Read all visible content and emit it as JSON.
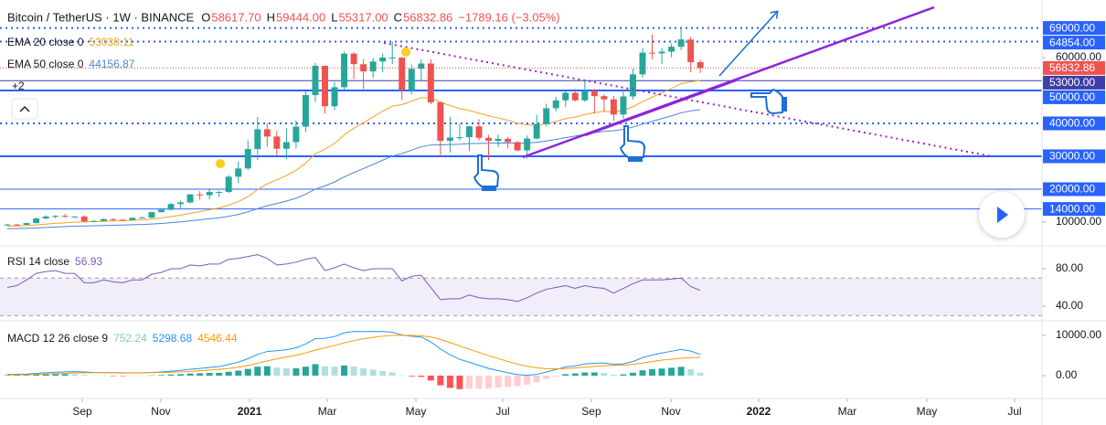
{
  "header": {
    "symbol": "Bitcoin / TetherUS · 1W · BINANCE",
    "ohlc": [
      {
        "key": "O",
        "value": "58617.70"
      },
      {
        "key": "H",
        "value": "59444.00"
      },
      {
        "key": "L",
        "value": "55317.00"
      },
      {
        "key": "C",
        "value": "56832.86"
      }
    ],
    "change": "−1789.16 (−3.05%)",
    "indicators_hidden": "+2"
  },
  "chart_data": [
    {
      "type": "candlestick",
      "categories": [
        null,
        null,
        null,
        null,
        null,
        null,
        null,
        null,
        null,
        null,
        null,
        null,
        null,
        null,
        null,
        null,
        null,
        null,
        null,
        null,
        null,
        null,
        null,
        null,
        null,
        null,
        null,
        null,
        null,
        null,
        null,
        null,
        null,
        null,
        null,
        null,
        null,
        null,
        null,
        null,
        null,
        null,
        null,
        null,
        null,
        null,
        null,
        null,
        null,
        null,
        null,
        null,
        null,
        null,
        null,
        null,
        null,
        null,
        null,
        null,
        null,
        null,
        null,
        null,
        null,
        null,
        null,
        null,
        null,
        null,
        null,
        null,
        null
      ],
      "open": [
        9070,
        9250,
        9170,
        9700,
        11100,
        11700,
        11900,
        11650,
        11700,
        10250,
        10330,
        10920,
        10700,
        10600,
        11300,
        11370,
        13030,
        13780,
        15480,
        15970,
        18400,
        18180,
        19150,
        19150,
        23800,
        26300,
        32200,
        38200,
        36000,
        32300,
        34300,
        39000,
        48600,
        57500,
        45200,
        51000,
        61200,
        58000,
        55800,
        58800,
        60000,
        60000,
        50100,
        56600,
        58200,
        46400,
        34700,
        35700,
        35800,
        39100,
        35600,
        34700,
        35300,
        34300,
        31800,
        35400,
        39800,
        44600,
        47000,
        49300,
        47000,
        49900,
        48300,
        47300,
        42700,
        48200,
        54900,
        61500,
        61300,
        61800,
        63300,
        65500,
        58617.7
      ],
      "high": [
        9450,
        9400,
        9900,
        11400,
        12100,
        12100,
        12500,
        11800,
        12100,
        10600,
        11100,
        11200,
        10950,
        11500,
        11700,
        13200,
        14000,
        15800,
        16500,
        18600,
        19400,
        19900,
        19500,
        24300,
        28400,
        34800,
        41900,
        40100,
        37800,
        38500,
        40900,
        49700,
        58400,
        57500,
        52600,
        61800,
        61700,
        59500,
        59900,
        61200,
        64854,
        60100,
        57900,
        59500,
        59500,
        46600,
        42000,
        39900,
        39300,
        41300,
        36500,
        36600,
        35900,
        34600,
        36300,
        42600,
        46000,
        48100,
        49900,
        50500,
        52900,
        50500,
        48800,
        48400,
        50400,
        56600,
        62900,
        67000,
        62900,
        64300,
        69000,
        66300,
        59444
      ],
      "low": [
        8950,
        9000,
        9100,
        9600,
        10800,
        11100,
        11300,
        11200,
        9900,
        9900,
        10200,
        10400,
        10400,
        10500,
        11200,
        11200,
        12900,
        13500,
        14300,
        15700,
        16800,
        16900,
        17600,
        18800,
        21800,
        25800,
        28800,
        32800,
        30200,
        29200,
        32400,
        37400,
        46500,
        43000,
        44000,
        50300,
        53500,
        50400,
        53700,
        55500,
        58000,
        47100,
        48800,
        53100,
        45800,
        30000,
        31100,
        34800,
        31600,
        34800,
        28800,
        32800,
        32400,
        31500,
        29300,
        35100,
        39100,
        43700,
        45000,
        46600,
        46600,
        43000,
        43600,
        40700,
        41500,
        47300,
        53900,
        59500,
        58000,
        60100,
        62300,
        55600,
        55317
      ],
      "close": [
        9250,
        9170,
        9700,
        11100,
        11700,
        11900,
        11650,
        11700,
        10250,
        10330,
        10920,
        10700,
        10600,
        11300,
        11370,
        13030,
        13780,
        15480,
        15970,
        18400,
        18180,
        19150,
        19150,
        23800,
        26300,
        32200,
        38200,
        36000,
        32300,
        34300,
        39000,
        48600,
        57500,
        45200,
        51000,
        61200,
        58000,
        55800,
        58800,
        60000,
        60000,
        50100,
        56600,
        58200,
        46400,
        34700,
        35700,
        35800,
        39100,
        35600,
        34700,
        35300,
        34300,
        31800,
        35400,
        39800,
        44600,
        47000,
        49300,
        47000,
        49900,
        48300,
        47300,
        42700,
        48200,
        54900,
        61500,
        61300,
        61800,
        63300,
        65500,
        58600,
        56832.86
      ],
      "up_color": "#26a69a",
      "down_color": "#ef5350",
      "lines": [
        {
          "name": "EMA 20 close 0",
          "color": "#f7a21b",
          "values": [
            8800,
            8840,
            8920,
            9130,
            9370,
            9610,
            9810,
            9990,
            10060,
            10140,
            10260,
            10350,
            10420,
            10550,
            10680,
            10950,
            11270,
            11670,
            12080,
            12680,
            13200,
            13760,
            14270,
            15180,
            16230,
            17750,
            19890,
            21620,
            22830,
            24160,
            25760,
            27930,
            30750,
            32120,
            33920,
            36520,
            38560,
            40200,
            41970,
            43690,
            45240,
            45700,
            46740,
            47830,
            47700,
            46460,
            45440,
            44520,
            43910,
            43120,
            42320,
            41650,
            40950,
            40080,
            39540,
            39420,
            39900,
            40580,
            41410,
            41950,
            42720,
            43250,
            43640,
            43550,
            43990,
            45030,
            46600,
            47990,
            49300,
            50640,
            52060,
            52680,
            53038.11
          ]
        },
        {
          "name": "EMA 50 close 0",
          "color": "#4a86d8",
          "values": [
            8000,
            8050,
            8110,
            8230,
            8370,
            8510,
            8640,
            8760,
            8830,
            8890,
            8970,
            9040,
            9100,
            9190,
            9270,
            9420,
            9590,
            9820,
            10060,
            10380,
            10680,
            11000,
            11300,
            11770,
            12330,
            13120,
            14110,
            14970,
            15650,
            16380,
            17260,
            18490,
            20020,
            21010,
            22190,
            23720,
            25060,
            26260,
            27540,
            28820,
            30050,
            30840,
            31860,
            32900,
            33420,
            33470,
            33560,
            33650,
            33870,
            33940,
            33970,
            34030,
            34040,
            33950,
            34010,
            34230,
            34640,
            35130,
            35700,
            36150,
            36700,
            37170,
            37570,
            37780,
            38200,
            38870,
            39770,
            40620,
            41450,
            42300,
            43200,
            43800,
            44156.87
          ]
        }
      ],
      "levels": [
        {
          "value": 69000,
          "label": "69000.00",
          "color": "#2962ff",
          "dash": true,
          "width": 2
        },
        {
          "value": 64854,
          "label": "64854.00",
          "color": "#2962ff",
          "dash": true,
          "width": 2
        },
        {
          "value": 53000,
          "label": "53000.00",
          "color": "#3f3fa8",
          "dash": false,
          "width": 1
        },
        {
          "value": 50000,
          "label": "50000.00",
          "color": "#2962ff",
          "dash": false,
          "width": 2
        },
        {
          "value": 40000,
          "label": "40000.00",
          "color": "#2962ff",
          "dash": true,
          "width": 2
        },
        {
          "value": 30000,
          "label": "30000.00",
          "color": "#2962ff",
          "dash": false,
          "width": 2
        },
        {
          "value": 20000,
          "label": "20000.00",
          "color": "#2962ff",
          "dash": false,
          "width": 1
        },
        {
          "value": 14000,
          "label": "14000.00",
          "color": "#2962ff",
          "dash": false,
          "width": 1
        }
      ],
      "last_price_color": "#ef5350",
      "xlim": [
        -0.76,
        107.5
      ],
      "xticks": [
        {
          "value": 7.79,
          "label": "Sep"
        },
        {
          "value": 15.95,
          "label": "Nov"
        },
        {
          "value": 25.17,
          "label": "2021"
        },
        {
          "value": 33.24,
          "label": "Mar"
        },
        {
          "value": 42.45,
          "label": "May"
        },
        {
          "value": 51.47,
          "label": "Jul"
        },
        {
          "value": 60.68,
          "label": "Sep"
        },
        {
          "value": 68.95,
          "label": "Nov"
        },
        {
          "value": 78.06,
          "label": "2022"
        },
        {
          "value": 87.27,
          "label": "Mar"
        },
        {
          "value": 95.53,
          "label": "May"
        },
        {
          "value": 104.65,
          "label": "Jul"
        }
      ],
      "ylim": [
        3056,
        77500
      ],
      "yticks": [
        {
          "value": 60000,
          "label": "60000.00"
        },
        {
          "value": 10000,
          "label": "10000.00"
        }
      ],
      "grid": false
    },
    {
      "type": "line",
      "name": "RSI 14 close",
      "color": "#7e57c2",
      "values": [
        60,
        62,
        68,
        75,
        77,
        78,
        75,
        75,
        65,
        65,
        68,
        66,
        65,
        68,
        68,
        74,
        76,
        80,
        80,
        84,
        83,
        85,
        85,
        90,
        91,
        93,
        95,
        91,
        84,
        85,
        87,
        90,
        92,
        78,
        81,
        85,
        81,
        78,
        80,
        80,
        80,
        67,
        72,
        73,
        60,
        47,
        48,
        48,
        52,
        49,
        48,
        48,
        47,
        45,
        49,
        54,
        58,
        60,
        62,
        59,
        62,
        60,
        59,
        54,
        59,
        64,
        68,
        68,
        68,
        69,
        70,
        61,
        56.93
      ],
      "band": [
        30,
        70
      ],
      "band_color": "#7e57c2",
      "ylim": [
        25.4,
        103.4
      ],
      "yticks": [
        {
          "value": 80,
          "label": "80.00"
        },
        {
          "value": 40,
          "label": "40.00"
        }
      ]
    },
    {
      "type": "macd",
      "name": "MACD 12 26 close 9",
      "histogram": [
        100,
        110,
        140,
        240,
        320,
        370,
        370,
        340,
        190,
        80,
        40,
        -10,
        -50,
        -30,
        -20,
        70,
        150,
        280,
        370,
        540,
        590,
        670,
        700,
        980,
        1240,
        1670,
        2220,
        2340,
        2030,
        1820,
        1820,
        2240,
        2850,
        2340,
        2220,
        2520,
        2300,
        1800,
        1480,
        1140,
        790,
        70,
        -180,
        -300,
        -1200,
        -2400,
        -3040,
        -3350,
        -3240,
        -3230,
        -3180,
        -2990,
        -2790,
        -2630,
        -2240,
        -1620,
        -820,
        -180,
        380,
        540,
        790,
        790,
        670,
        260,
        310,
        720,
        1330,
        1620,
        1770,
        1960,
        2190,
        1620,
        752.24
      ],
      "macd": [
        300,
        340,
        400,
        560,
        720,
        860,
        950,
        1000,
        900,
        810,
        780,
        730,
        680,
        690,
        690,
        800,
        920,
        1120,
        1300,
        1600,
        1800,
        2050,
        2250,
        2780,
        3350,
        4200,
        5300,
        6000,
        6200,
        6440,
        6900,
        7880,
        9200,
        9280,
        9720,
        10650,
        11000,
        10950,
        11000,
        10950,
        10800,
        10100,
        9800,
        9600,
        8400,
        6600,
        5200,
        4050,
        3350,
        2550,
        1800,
        1250,
        750,
        250,
        80,
        300,
        900,
        1500,
        2150,
        2450,
        2900,
        3100,
        3150,
        2800,
        2930,
        3520,
        4460,
        5150,
        5620,
        6060,
        6520,
        6100,
        5298.68
      ],
      "signal": [
        200,
        230,
        260,
        320,
        400,
        490,
        580,
        660,
        710,
        730,
        740,
        740,
        730,
        720,
        710,
        730,
        770,
        840,
        930,
        1060,
        1210,
        1380,
        1550,
        1800,
        2110,
        2530,
        3080,
        3660,
        4170,
        4620,
        5080,
        5640,
        6350,
        6940,
        7500,
        8130,
        8700,
        9150,
        9520,
        9810,
        10010,
        10030,
        9980,
        9900,
        9600,
        9000,
        8240,
        7400,
        6590,
        5780,
        4980,
        4240,
        3540,
        2880,
        2320,
        1920,
        1720,
        1680,
        1770,
        1910,
        2110,
        2310,
        2480,
        2540,
        2620,
        2800,
        3130,
        3530,
        3850,
        4100,
        4330,
        4480,
        4546.44
      ],
      "macd_color": "#2196f3",
      "signal_color": "#ff9800",
      "colors": {
        "positive_rising": "#26a69a",
        "positive_falling": "#b2dfdb",
        "negative_falling": "#ff5252",
        "negative_rising": "#ffcdd2"
      },
      "ylim": [
        -5450,
        13400
      ],
      "yticks": [
        {
          "value": 10000,
          "label": "10000.00"
        },
        {
          "value": 0,
          "label": "0.00"
        }
      ]
    }
  ]
}
